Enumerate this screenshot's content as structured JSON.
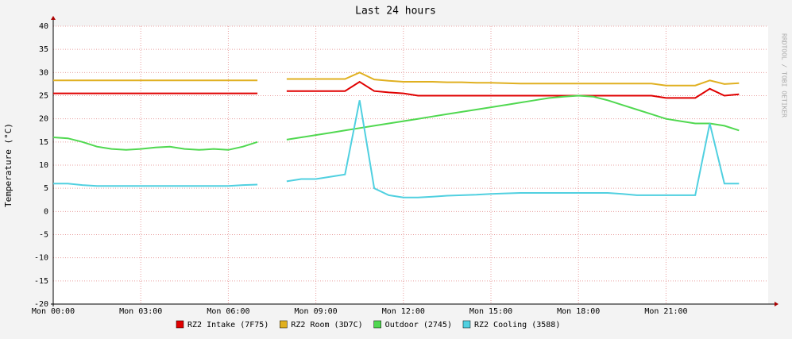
{
  "chart_data": {
    "type": "line",
    "title": "Last 24 hours",
    "ylabel": "Temperature (°C)",
    "side_note": "RRDTOOL / TOBI OETIKER",
    "x": [
      "Mon 00:00",
      "Mon 00:30",
      "Mon 01:00",
      "Mon 01:30",
      "Mon 02:00",
      "Mon 02:30",
      "Mon 03:00",
      "Mon 03:30",
      "Mon 04:00",
      "Mon 04:30",
      "Mon 05:00",
      "Mon 05:30",
      "Mon 06:00",
      "Mon 06:30",
      "Mon 07:00",
      "Mon 07:30",
      "Mon 08:00",
      "Mon 08:30",
      "Mon 09:00",
      "Mon 09:30",
      "Mon 10:00",
      "Mon 10:30",
      "Mon 11:00",
      "Mon 11:30",
      "Mon 12:00",
      "Mon 12:30",
      "Mon 13:00",
      "Mon 13:30",
      "Mon 14:00",
      "Mon 14:30",
      "Mon 15:00",
      "Mon 15:30",
      "Mon 16:00",
      "Mon 16:30",
      "Mon 17:00",
      "Mon 17:30",
      "Mon 18:00",
      "Mon 18:30",
      "Mon 19:00",
      "Mon 19:30",
      "Mon 20:00",
      "Mon 20:30",
      "Mon 21:00",
      "Mon 21:30",
      "Mon 22:00",
      "Mon 22:30",
      "Mon 23:00",
      "Mon 23:30"
    ],
    "series": [
      {
        "name": "RZ2 Intake (7F75)",
        "color": "#e00000",
        "values": [
          25.5,
          25.5,
          25.5,
          25.5,
          25.5,
          25.5,
          25.5,
          25.5,
          25.5,
          25.5,
          25.5,
          25.5,
          25.5,
          25.5,
          25.5,
          null,
          26,
          26,
          26,
          26,
          26,
          28,
          26,
          25.7,
          25.5,
          25,
          25,
          25,
          25,
          25,
          25,
          25,
          25,
          25,
          25,
          25,
          25,
          25,
          25,
          25,
          25,
          25,
          24.5,
          24.5,
          24.5,
          26.5,
          25,
          25.3
        ]
      },
      {
        "name": "RZ2 Room (3D7C)",
        "color": "#e0b020",
        "values": [
          28.3,
          28.3,
          28.3,
          28.3,
          28.3,
          28.3,
          28.3,
          28.3,
          28.3,
          28.3,
          28.3,
          28.3,
          28.3,
          28.3,
          28.3,
          null,
          28.6,
          28.6,
          28.6,
          28.6,
          28.6,
          30,
          28.5,
          28.2,
          28,
          28,
          28,
          27.9,
          27.9,
          27.8,
          27.8,
          27.7,
          27.6,
          27.6,
          27.6,
          27.6,
          27.6,
          27.6,
          27.6,
          27.6,
          27.6,
          27.6,
          27.2,
          27.2,
          27.2,
          28.3,
          27.5,
          27.7
        ]
      },
      {
        "name": "Outdoor (2745)",
        "color": "#50d850",
        "values": [
          16,
          15.8,
          15,
          14,
          13.5,
          13.3,
          13.5,
          13.8,
          14,
          13.5,
          13.3,
          13.5,
          13.3,
          14,
          15,
          null,
          15.5,
          16,
          16.5,
          17,
          17.5,
          18,
          18.5,
          19,
          19.5,
          20,
          20.5,
          21,
          21.5,
          22,
          22.5,
          23,
          23.5,
          24,
          24.5,
          24.8,
          25,
          24.8,
          24,
          23,
          22,
          21,
          20,
          19.5,
          19,
          19,
          18.5,
          17.5
        ]
      },
      {
        "name": "RZ2 Cooling (3588)",
        "color": "#50d0e0",
        "values": [
          6,
          6,
          5.7,
          5.5,
          5.5,
          5.5,
          5.5,
          5.5,
          5.5,
          5.5,
          5.5,
          5.5,
          5.5,
          5.7,
          5.8,
          null,
          6.5,
          7,
          7,
          7.5,
          8,
          24,
          5,
          3.5,
          3,
          3,
          3.2,
          3.4,
          3.5,
          3.6,
          3.8,
          3.9,
          4,
          4,
          4,
          4,
          4,
          4,
          4,
          3.8,
          3.5,
          3.5,
          3.5,
          3.5,
          3.5,
          19,
          6,
          6
        ]
      }
    ],
    "ylim": [
      -20,
      40
    ],
    "yticks": [
      -20,
      -15,
      -10,
      -5,
      0,
      5,
      10,
      15,
      20,
      25,
      30,
      35,
      40
    ],
    "grid": true
  }
}
